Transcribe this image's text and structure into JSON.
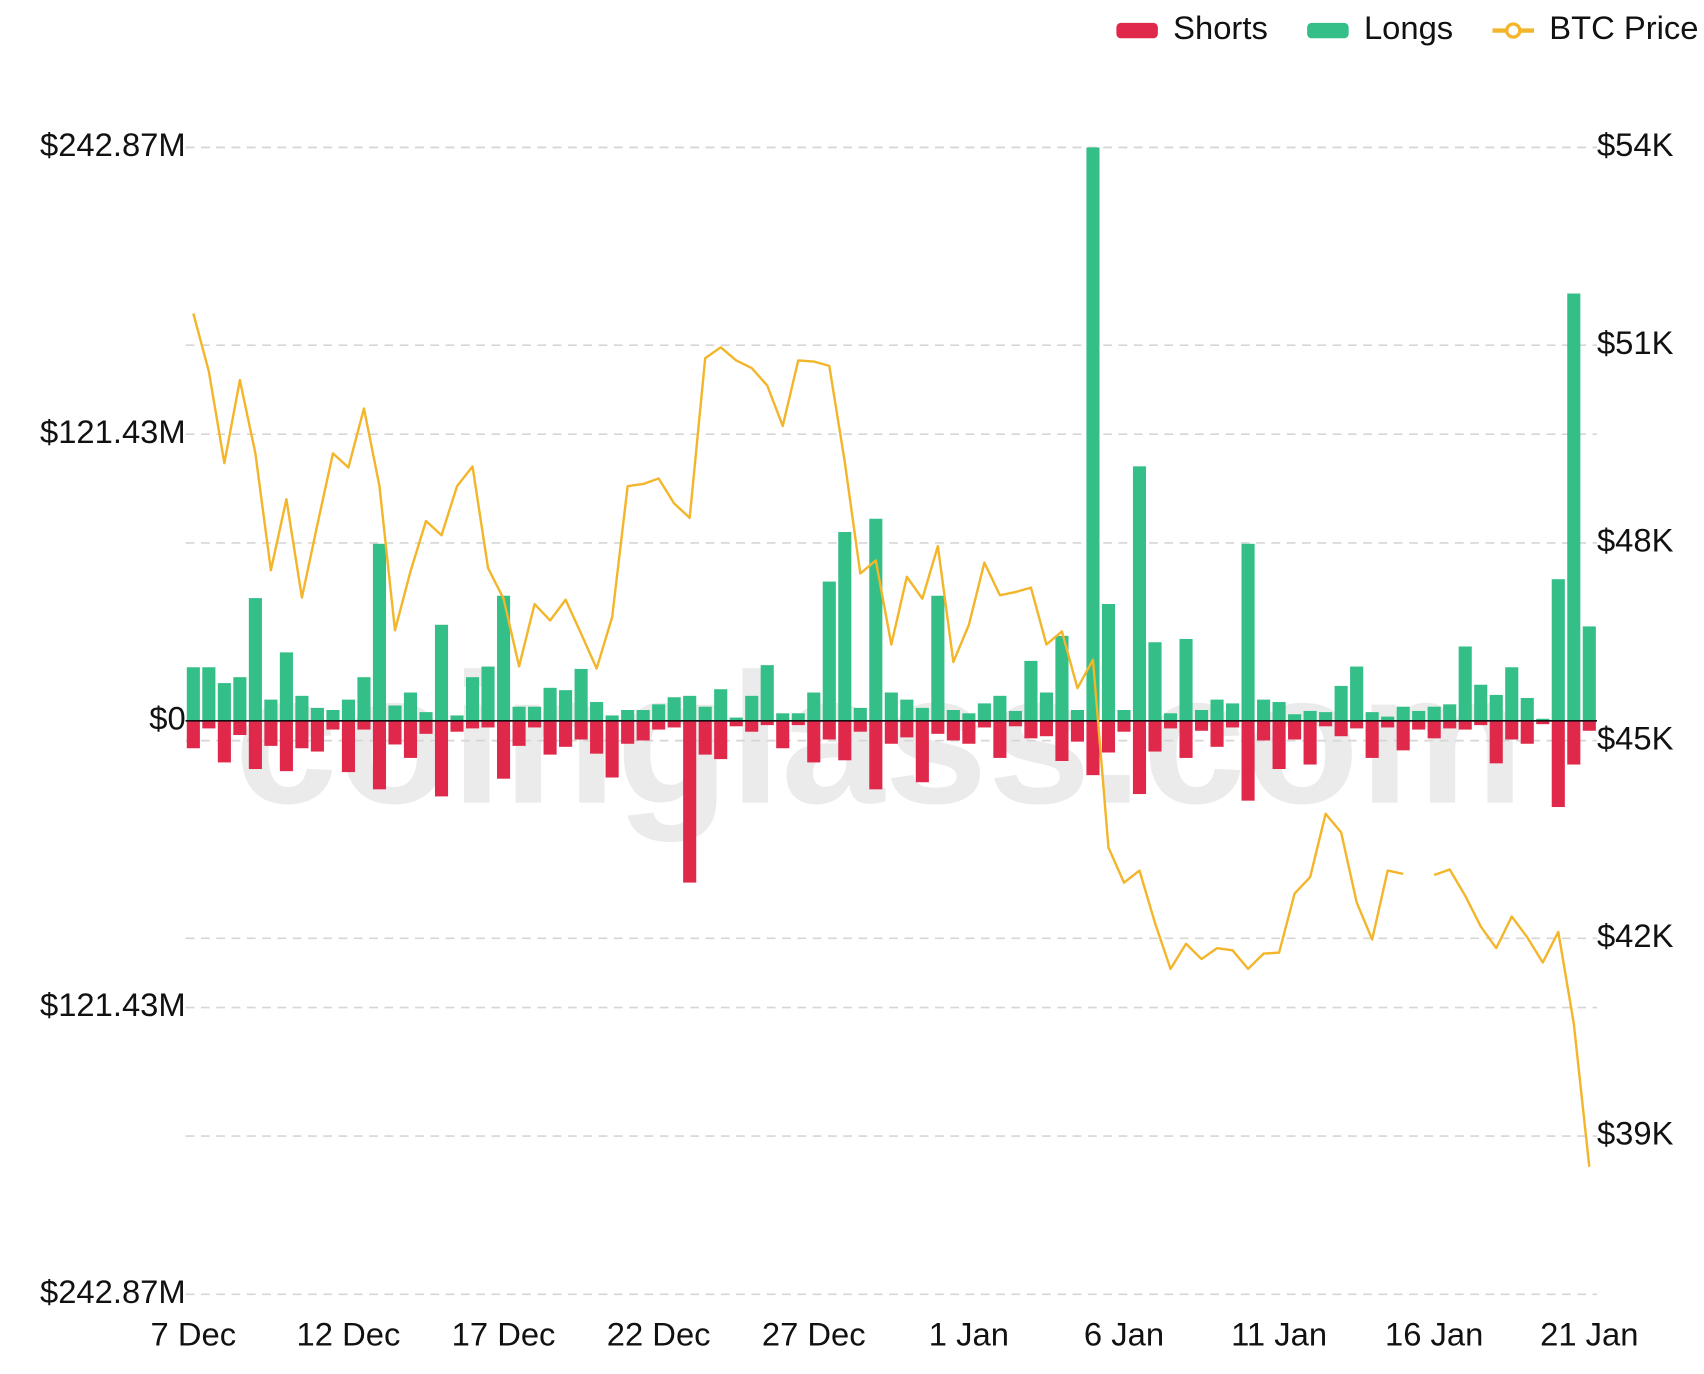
{
  "chart_data": {
    "type": "bar",
    "watermark": "coinglass.com",
    "legend": "top-right",
    "grid": true,
    "categories": [
      "7 Dec",
      null,
      null,
      null,
      null,
      null,
      null,
      null,
      null,
      null,
      "12 Dec",
      null,
      null,
      null,
      null,
      null,
      null,
      null,
      null,
      null,
      "17 Dec",
      null,
      null,
      null,
      null,
      null,
      null,
      null,
      null,
      null,
      "22 Dec",
      null,
      null,
      null,
      null,
      null,
      null,
      null,
      null,
      null,
      "27 Dec",
      null,
      null,
      null,
      null,
      null,
      null,
      null,
      null,
      null,
      "1 Jan",
      null,
      null,
      null,
      null,
      null,
      null,
      null,
      null,
      null,
      "6 Jan",
      null,
      null,
      null,
      null,
      null,
      null,
      null,
      null,
      null,
      "11 Jan",
      null,
      null,
      null,
      null,
      null,
      null,
      null,
      null,
      null,
      "16 Jan",
      null,
      null,
      null,
      null,
      null,
      null,
      null,
      null,
      null,
      "21 Jan"
    ],
    "ylim": [
      -242.87,
      242.87
    ],
    "yticks": [
      {
        "value": 242.87,
        "label": "$242.87M"
      },
      {
        "value": 121.43,
        "label": "$121.43M"
      },
      {
        "value": 0,
        "label": "$0"
      },
      {
        "value": -121.43,
        "label": "$121.43M"
      },
      {
        "value": -242.87,
        "label": "$242.87M"
      }
    ],
    "y2lim": [
      36600,
      54000
    ],
    "y2ticks": [
      {
        "value": 54000,
        "label": "$54K"
      },
      {
        "value": 51000,
        "label": "$51K"
      },
      {
        "value": 48000,
        "label": "$48K"
      },
      {
        "value": 45000,
        "label": "$45K"
      },
      {
        "value": 42000,
        "label": "$42K"
      },
      {
        "value": 39000,
        "label": "$39K"
      }
    ],
    "series": [
      {
        "name": "Shorts",
        "type": "bar",
        "color": "#e0294a",
        "values": [
          -11.6,
          -3.2,
          -17.6,
          -6,
          -20.4,
          -10.6,
          -21.3,
          -11.6,
          -13,
          -3.7,
          -21.7,
          -3.7,
          -29,
          -10,
          -15.7,
          -5.5,
          -32,
          -4.6,
          -3.2,
          -2.8,
          -24.5,
          -10.6,
          -2.8,
          -14.3,
          -11,
          -7.9,
          -13.9,
          -24,
          -9.7,
          -8.3,
          -3.7,
          -2.8,
          -68.5,
          -14.3,
          -16.2,
          -2.3,
          -4.6,
          -1.8,
          -11.6,
          -1.8,
          -17.6,
          -7.9,
          -16.7,
          -4.6,
          -29,
          -9.7,
          -7,
          -26,
          -5.5,
          -8.3,
          -9.7,
          -2.8,
          -15.7,
          -2.3,
          -7.4,
          -6.5,
          -17,
          -8.8,
          -23,
          -13.4,
          -4.6,
          -31,
          -13,
          -3.2,
          -15.7,
          -4.2,
          -11,
          -2.8,
          -33.8,
          -8.3,
          -20.4,
          -7.9,
          -18.5,
          -2.3,
          -6.5,
          -3.2,
          -15.7,
          -2.8,
          -12.5,
          -3.7,
          -7.4,
          -3.2,
          -3.7,
          -1.8,
          -18,
          -7.9,
          -9.7,
          -1.4,
          -36.5,
          -18.5,
          -4.2
        ]
      },
      {
        "name": "Longs",
        "type": "bar",
        "color": "#33bf87",
        "values": [
          22.7,
          22.7,
          16,
          18.5,
          52,
          9,
          29,
          10.6,
          5.5,
          4.6,
          9,
          18.5,
          75,
          6.5,
          12,
          3.7,
          40.7,
          2.3,
          18.5,
          23,
          53,
          6,
          6,
          14,
          13,
          22,
          8,
          2.3,
          4.6,
          4.6,
          7,
          10,
          10.6,
          6,
          13.4,
          1.4,
          10.6,
          23.6,
          3.2,
          3.2,
          12,
          59,
          80,
          5.5,
          85.6,
          12,
          9,
          5.5,
          53,
          4.6,
          3.2,
          7.4,
          10.6,
          4.2,
          25.4,
          12,
          36,
          4.6,
          242.87,
          49.5,
          4.6,
          107.8,
          33.3,
          3.2,
          34.7,
          4.6,
          9,
          7.4,
          75,
          9,
          8,
          2.8,
          4.2,
          3.7,
          14.8,
          23,
          3.7,
          1.8,
          6,
          4.2,
          6,
          7,
          31.5,
          15.3,
          11,
          22.7,
          9.7,
          0.9,
          60,
          181,
          40
        ]
      },
      {
        "name": "BTC Price",
        "type": "line",
        "axis": "y2",
        "color": "#f3b52a",
        "values": [
          51481,
          50602,
          49210,
          50470,
          49359,
          47586,
          48663,
          47171,
          48282,
          49359,
          49144,
          50039,
          48862,
          46674,
          47569,
          48332,
          48116,
          48862,
          49160,
          47619,
          47155,
          46127,
          47072,
          46823,
          47138,
          46624,
          46094,
          46873,
          48862,
          48895,
          48978,
          48597,
          48381,
          50801,
          50967,
          50768,
          50652,
          50387,
          49774,
          50768,
          50752,
          50685,
          49227,
          47536,
          47735,
          46459,
          47486,
          47155,
          47950,
          46193,
          46757,
          47702,
          47205,
          47254,
          47321,
          46459,
          46658,
          45796,
          46227,
          43376,
          42845,
          43028,
          42232,
          41536,
          41917,
          41685,
          41851,
          41818,
          41536,
          41768,
          41784,
          42680,
          42928,
          43889,
          43608,
          42547,
          41983,
          43028,
          42978,
          null,
          42961,
          43044,
          42646,
          42182,
          41851,
          42331,
          42016,
          41635,
          42099,
          40707,
          38536
        ]
      }
    ]
  }
}
